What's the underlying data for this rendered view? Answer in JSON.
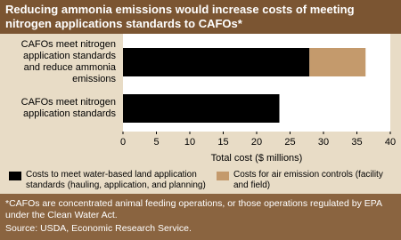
{
  "chart_data": {
    "type": "bar",
    "orientation": "horizontal",
    "title": "Reducing ammonia emissions would increase costs of meeting nitrogen applications standards to CAFOs*",
    "categories": [
      "CAFOs meet nitrogen application standards and reduce ammonia emissions",
      "CAFOs meet nitrogen application standards"
    ],
    "series": [
      {
        "name": "Costs to meet water-based land application standards (hauling, application, and planning)",
        "color": "#000000",
        "values": [
          27.9,
          23.4
        ]
      },
      {
        "name": "Costs for air emission controls (facility and field)",
        "color": "#c49a6c",
        "values": [
          8.4,
          null
        ]
      }
    ],
    "xlim": [
      0,
      40
    ],
    "xticks": [
      0,
      5,
      10,
      15,
      20,
      25,
      30,
      35,
      40
    ],
    "xlabel": "Total cost ($ millions)",
    "footnote": "*CAFOs are concentrated animal feeding operations, or those operations regulated by EPA under the Clean Water Act.",
    "source": "Source: USDA, Economic Research Service."
  }
}
